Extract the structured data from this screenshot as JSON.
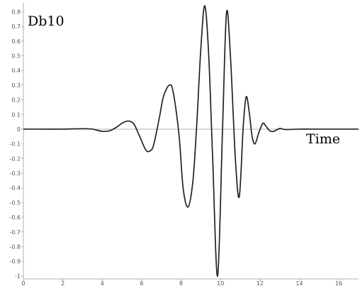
{
  "chart_data": {
    "type": "line",
    "title": "Db10",
    "xlabel": "Time",
    "ylabel": "",
    "xlim": [
      0,
      17
    ],
    "ylim": [
      -1.02,
      0.86
    ],
    "x_ticks": [
      0,
      2,
      4,
      6,
      8,
      10,
      12,
      14,
      16
    ],
    "y_ticks": [
      0.8,
      0.7,
      0.6,
      0.5,
      0.4,
      0.3,
      0.2,
      0.1,
      0,
      -0.1,
      -0.2,
      -0.3,
      -0.4,
      -0.5,
      -0.6,
      -0.7,
      -0.8,
      -0.9,
      -1
    ],
    "y_tick_labels": [
      "0.8",
      "0.7",
      "0.6",
      "0.5",
      "0.4",
      "0.3",
      "0.2",
      "0.1",
      "0",
      "-0.1",
      "-0.2",
      "-0.3",
      "-0.4",
      "-0.5",
      "-0.6",
      "-0.7",
      "-0.8",
      "-0.9",
      "-1"
    ],
    "grid": false,
    "line_color": "#222222",
    "series": [
      {
        "x": [
          0,
          1,
          2,
          3,
          3.5,
          4,
          4.4,
          4.8,
          5.0,
          5.3,
          5.6,
          5.9,
          6.2,
          6.4,
          6.6,
          6.9,
          7.1,
          7.4,
          7.6,
          7.9,
          8.1,
          8.35,
          8.6,
          8.8,
          9.0,
          9.2,
          9.4,
          9.6,
          9.85,
          10.1,
          10.3,
          10.5,
          10.75,
          10.95,
          11.15,
          11.3,
          11.45,
          11.6,
          11.75,
          11.95,
          12.15,
          12.3,
          12.5,
          12.7,
          13.0,
          13.3,
          14,
          15,
          16,
          17
        ],
        "y": [
          0,
          0,
          0,
          0.003,
          0,
          -0.015,
          -0.01,
          0.02,
          0.04,
          0.055,
          0.035,
          -0.05,
          -0.14,
          -0.15,
          -0.11,
          0.08,
          0.22,
          0.3,
          0.25,
          -0.05,
          -0.4,
          -0.53,
          -0.35,
          0.05,
          0.55,
          0.84,
          0.5,
          -0.2,
          -1.0,
          0.0,
          0.79,
          0.5,
          -0.2,
          -0.46,
          0.02,
          0.22,
          0.12,
          -0.05,
          -0.1,
          -0.02,
          0.04,
          0.02,
          -0.012,
          -0.015,
          0.004,
          -0.003,
          0,
          0,
          0,
          0
        ]
      }
    ]
  }
}
